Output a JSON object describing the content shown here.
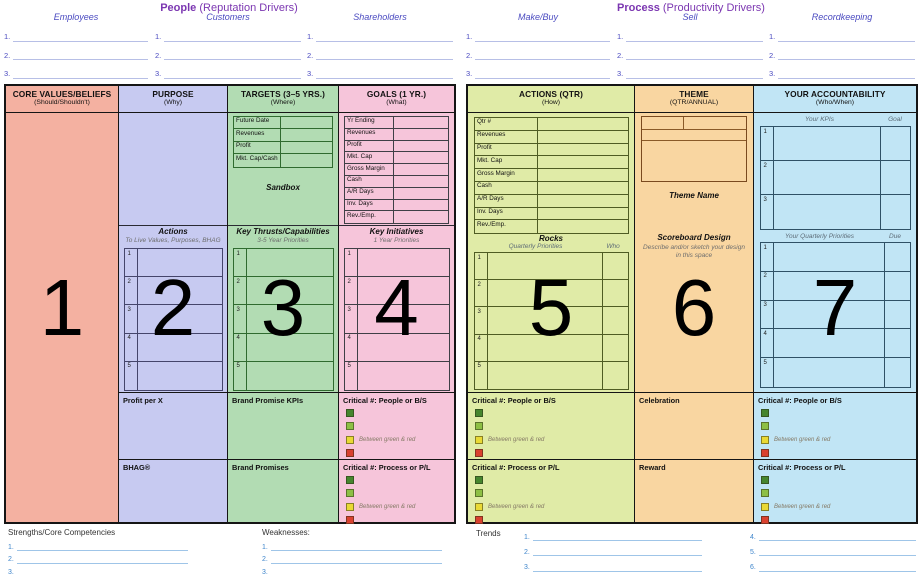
{
  "line_numbers": [
    "1.",
    "2.",
    "3."
  ],
  "people": {
    "title": "People",
    "subtitle": "(Reputation Drivers)",
    "groups": [
      "Employees",
      "Customers",
      "Shareholders"
    ]
  },
  "process": {
    "title": "Process",
    "subtitle": "(Productivity Drivers)",
    "groups": [
      "Make/Buy",
      "Sell",
      "Recordkeeping"
    ]
  },
  "columns": {
    "core_values": {
      "number": "1",
      "title": "CORE VALUES/BELIEFS",
      "subtitle": "(Should/Shouldn't)"
    },
    "purpose": {
      "number": "2",
      "title": "PURPOSE",
      "subtitle": "(Why)",
      "actions_title": "Actions",
      "actions_subtitle": "To Live Values, Purposes, BHAG",
      "rows": [
        "1",
        "2",
        "3",
        "4",
        "5"
      ],
      "profit_label": "Profit per X",
      "bhag_label": "BHAG®"
    },
    "targets": {
      "number": "3",
      "title": "TARGETS (3–5 YRS.)",
      "subtitle": "(Where)",
      "metrics": [
        "Future Date",
        "Revenues",
        "Profit",
        "Mkt. Cap/Cash"
      ],
      "sandbox_label": "Sandbox",
      "thrusts_title": "Key Thrusts/Capabilities",
      "thrusts_subtitle": "3-5 Year Priorities",
      "rows": [
        "1",
        "2",
        "3",
        "4",
        "5"
      ],
      "kpis_label": "Brand Promise KPIs",
      "promises_label": "Brand Promises"
    },
    "goals": {
      "number": "4",
      "title": "GOALS (1 YR.)",
      "subtitle": "(What)",
      "metrics": [
        "Yr Ending",
        "Revenues",
        "Profit",
        "Mkt. Cap",
        "Gross Margin",
        "Cash",
        "A/R Days",
        "Inv. Days",
        "Rev./Emp."
      ],
      "initiatives_title": "Key Initiatives",
      "initiatives_subtitle": "1 Year Priorities",
      "rows": [
        "1",
        "2",
        "3",
        "4",
        "5"
      ],
      "critical_people": "Critical #: People or B/S",
      "critical_process": "Critical #: Process or P/L"
    },
    "actions_qtr": {
      "number": "5",
      "title": "ACTIONS (QTR)",
      "subtitle": "(How)",
      "metrics": [
        "Qtr #",
        "Revenues",
        "Profit",
        "Mkt. Cap",
        "Gross Margin",
        "Cash",
        "A/R Days",
        "Inv. Days",
        "Rev./Emp."
      ],
      "rocks_title": "Rocks",
      "rocks_subtitle": "Quarterly Priorities",
      "who_label": "Who",
      "rows": [
        "1",
        "2",
        "3",
        "4",
        "5"
      ],
      "critical_people": "Critical #: People or B/S",
      "critical_process": "Critical #: Process or P/L"
    },
    "theme": {
      "number": "6",
      "title": "THEME",
      "subtitle": "(QTR/ANNUAL)",
      "theme_name_label": "Theme Name",
      "scoreboard_title": "Scoreboard Design",
      "scoreboard_subtitle": "Describe and/or sketch your design in this space",
      "celebration_label": "Celebration",
      "reward_label": "Reward"
    },
    "accountability": {
      "number": "7",
      "title": "YOUR ACCOUNTABILITY",
      "subtitle": "(Who/When)",
      "kpis_label": "Your KPIs",
      "goal_label": "Goal",
      "kpi_rows": [
        "1",
        "2",
        "3"
      ],
      "priorities_label": "Your Quarterly Priorities",
      "due_label": "Due",
      "rows": [
        "1",
        "2",
        "3",
        "4",
        "5"
      ],
      "critical_people": "Critical #: People or B/S",
      "critical_process": "Critical #: Process or P/L"
    }
  },
  "critical_legend": "Between green & red",
  "footer": {
    "strengths_label": "Strengths/Core Competencies",
    "weaknesses_label": "Weaknesses:",
    "trends_label": "Trends",
    "trend_numbers_b": [
      "4.",
      "5.",
      "6."
    ]
  },
  "colors": {
    "core_values_bg": "#f4b1a1",
    "purpose_bg": "#c7caf1",
    "targets_bg": "#b2dcb3",
    "goals_bg": "#f6c5da",
    "actions_bg": "#e0eba7",
    "theme_bg": "#f9d6a1",
    "accountability_bg": "#c1e5f5",
    "header_title_color": "#7b36b1",
    "status_squares": [
      "#46862e",
      "#8dbf45",
      "#e9d935",
      "#d9412f"
    ]
  }
}
